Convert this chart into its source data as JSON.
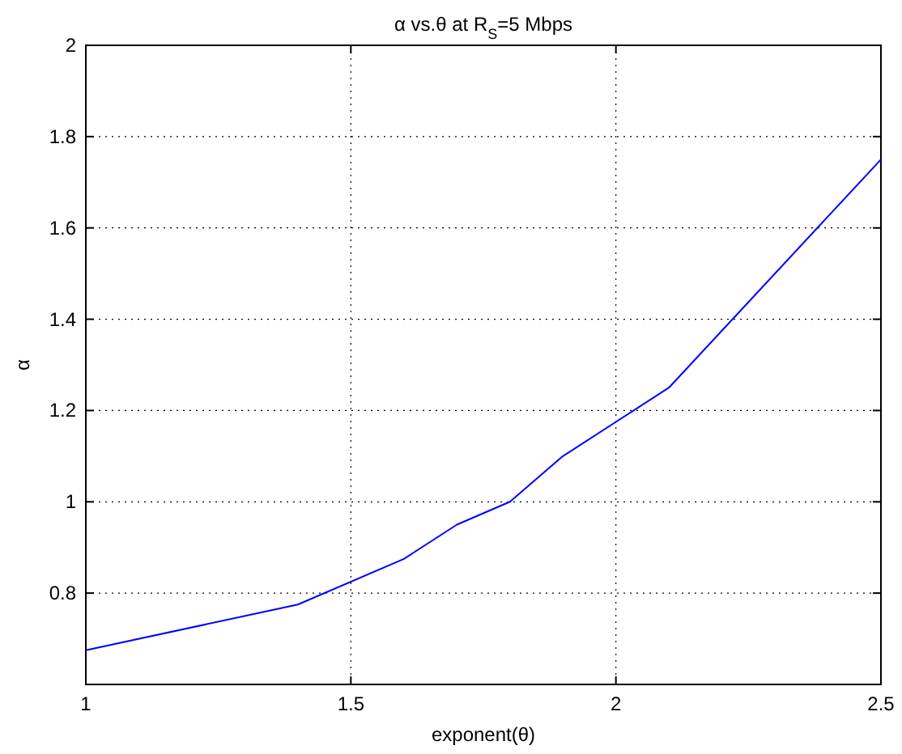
{
  "chart_data": {
    "type": "line",
    "title": "α vs.θ at R$_{S}$=5 Mbps",
    "xlabel": "exponent(θ)",
    "ylabel": "α",
    "x": [
      1,
      1.4,
      1.6,
      1.7,
      1.8,
      1.9,
      2.1,
      2.5
    ],
    "series": [
      {
        "color": "#0000ff",
        "values": [
          0.675,
          0.775,
          0.875,
          0.95,
          1.0,
          1.1,
          1.25,
          1.75
        ]
      }
    ],
    "xlim": [
      1,
      2.5
    ],
    "xticks": [
      1,
      1.5,
      2,
      2.5
    ],
    "ylim": [
      0.6,
      2
    ],
    "yticks": [
      0.8,
      1,
      1.2,
      1.4,
      1.6,
      1.8,
      2
    ],
    "grid": true,
    "line_style": "solid",
    "marker": "none"
  }
}
